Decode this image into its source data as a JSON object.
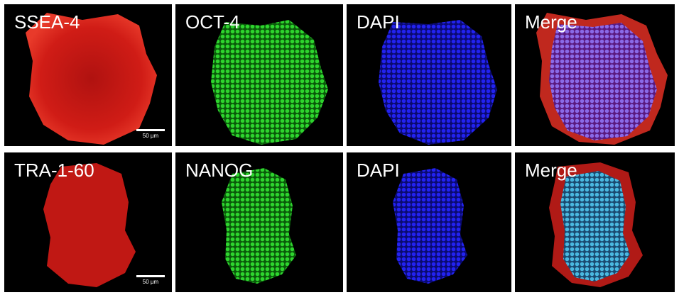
{
  "figure": {
    "rows": [
      {
        "panels": [
          {
            "label": "SSEA-4",
            "stain": "red",
            "color": "#e01a14",
            "scale_bar": "50 µm"
          },
          {
            "label": "OCT-4",
            "stain": "green",
            "color": "#22c022"
          },
          {
            "label": "DAPI",
            "stain": "blue",
            "color": "#1a1ae8"
          },
          {
            "label": "Merge",
            "stain": "merge",
            "color": "#b04090"
          }
        ]
      },
      {
        "panels": [
          {
            "label": "TRA-1-60",
            "stain": "red",
            "color": "#e01a14",
            "scale_bar": "50 µm"
          },
          {
            "label": "NANOG",
            "stain": "green",
            "color": "#22c022"
          },
          {
            "label": "DAPI",
            "stain": "blue",
            "color": "#1a1ae8"
          },
          {
            "label": "Merge",
            "stain": "merge",
            "color": "#40a8d8"
          }
        ]
      }
    ]
  }
}
